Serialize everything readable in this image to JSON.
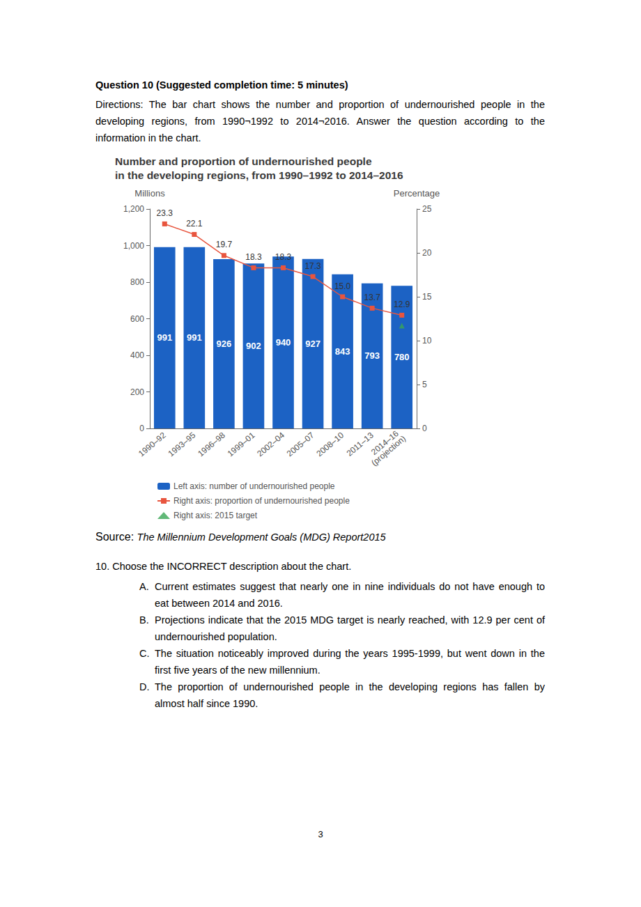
{
  "question_heading": "Question 10 (Suggested completion time: 5 minutes)",
  "directions": "Directions: The bar chart shows the number and proportion of undernourished people in the developing regions, from 1990¬1992 to 2014¬2016. Answer the question according to the information in the chart.",
  "chart_data": {
    "type": "bar",
    "title": "Number and proportion of undernourished people\nin the developing regions, from 1990–1992 to 2014–2016",
    "y_label": "Millions",
    "y2_label": "Percentage",
    "categories": [
      "1990–92",
      "1993–95",
      "1996–98",
      "1999–01",
      "2002–04",
      "2005–07",
      "2008–10",
      "2011–13",
      "2014–16 (projection)"
    ],
    "series": [
      {
        "name": "Left axis: number of undernourished people",
        "type": "bar",
        "color": "#1c62c4",
        "values": [
          991,
          991,
          926,
          902,
          940,
          927,
          843,
          793,
          780
        ],
        "data_labels": true
      },
      {
        "name": "Right axis: proportion of undernourished people",
        "type": "line",
        "color": "#e8553e",
        "marker": "square",
        "axis": "y2",
        "values": [
          23.3,
          22.1,
          19.7,
          18.3,
          18.3,
          17.3,
          15.0,
          13.7,
          12.9
        ],
        "value_labels": [
          "23.3",
          "22.1",
          "19.7",
          "18.3",
          "18.3",
          "17.3",
          "15.0",
          "13.7",
          "12.9"
        ],
        "data_labels": true
      },
      {
        "name": "Right axis: 2015 target",
        "type": "scatter",
        "color": "#3aa655",
        "marker": "triangle",
        "axis": "y2",
        "values": [
          null,
          null,
          null,
          null,
          null,
          null,
          null,
          null,
          11.7
        ]
      }
    ],
    "ylim": [
      0,
      1200
    ],
    "yticks": [
      0,
      200,
      400,
      600,
      800,
      {
        "value": 1000,
        "label": "1,000"
      },
      {
        "value": 1200,
        "label": "1,200"
      }
    ],
    "y2lim": [
      0,
      25
    ],
    "y2ticks": [
      0,
      5,
      10,
      15,
      20,
      25
    ],
    "grid": false,
    "legend": "bottom"
  },
  "source": {
    "label": "Source:",
    "title": "The Millennium Development Goals (MDG) Report2015"
  },
  "question": "10. Choose the INCORRECT description about the chart.",
  "options": [
    {
      "letter": "A.",
      "text": "Current estimates suggest that nearly one in nine individuals do not have enough to eat between 2014 and 2016."
    },
    {
      "letter": "B.",
      "text": "Projections indicate that the 2015 MDG target is nearly reached, with 12.9 per cent of undernourished population."
    },
    {
      "letter": "C.",
      "text": "The situation noticeably improved during the years 1995-1999, but went down in the first five years of the new millennium."
    },
    {
      "letter": "D.",
      "text": "The proportion of undernourished people in the developing regions has fallen by almost half since 1990."
    }
  ],
  "page_number": "3"
}
